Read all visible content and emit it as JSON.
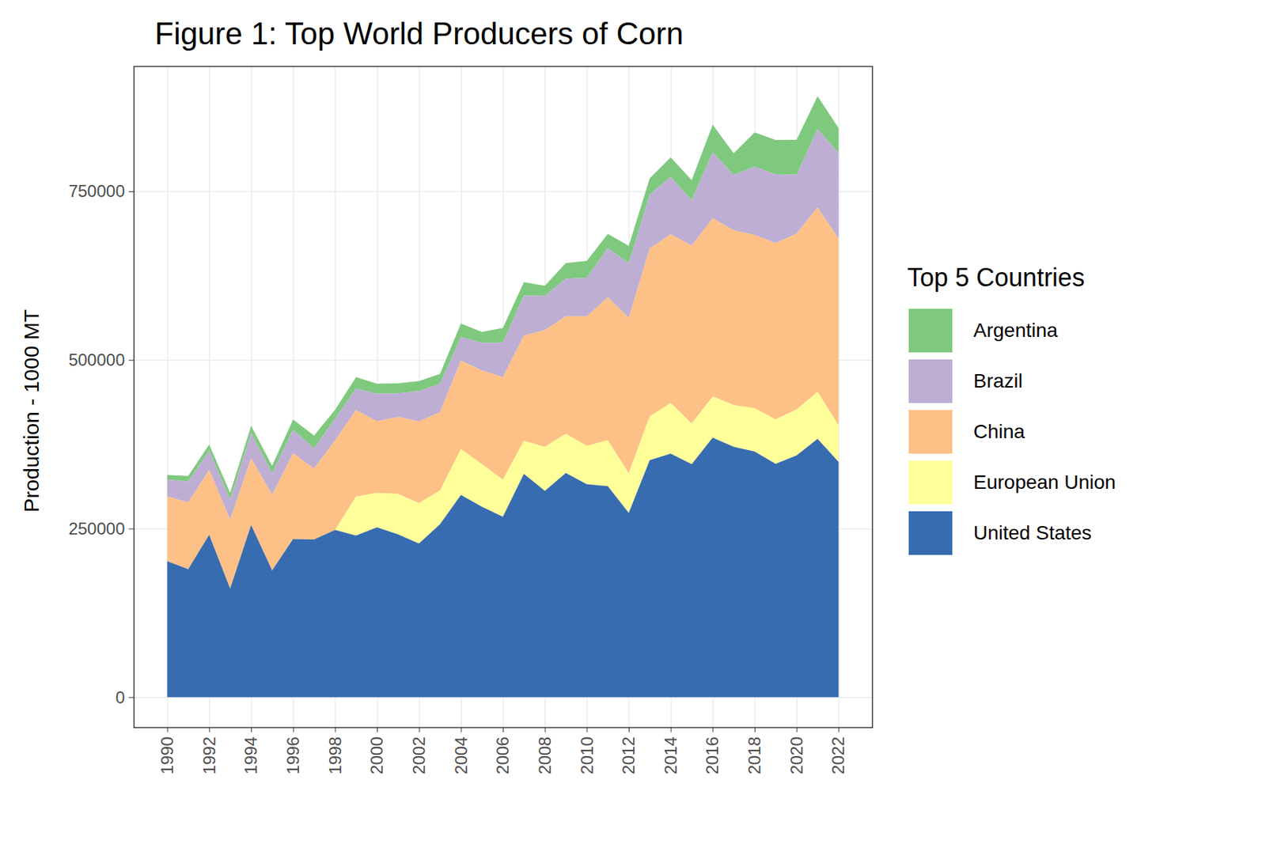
{
  "chart_data": {
    "type": "area",
    "title": "Figure 1: Top World Producers of Corn",
    "y_label": "Production - 1000 MT",
    "legend_title": "Top 5 Countries",
    "stacked": true,
    "grid": true,
    "legend": "right",
    "x": [
      1990,
      1991,
      1992,
      1993,
      1994,
      1995,
      1996,
      1997,
      1998,
      1999,
      2000,
      2001,
      2002,
      2003,
      2004,
      2005,
      2006,
      2007,
      2008,
      2009,
      2010,
      2011,
      2012,
      2013,
      2014,
      2015,
      2016,
      2017,
      2018,
      2019,
      2020,
      2021,
      2022
    ],
    "series": [
      {
        "name": "Argentina",
        "color": "#7fc97f",
        "values": [
          7000,
          8000,
          9000,
          10000,
          11000,
          11000,
          15000,
          19000,
          13000,
          17000,
          15000,
          15000,
          15000,
          15000,
          20000,
          16000,
          22000,
          20000,
          15000,
          23000,
          25000,
          21000,
          26000,
          24000,
          29000,
          30000,
          41000,
          32000,
          51000,
          51000,
          52000,
          49000,
          37000
        ]
      },
      {
        "name": "Brazil",
        "color": "#beaed4",
        "values": [
          25000,
          31000,
          29000,
          30000,
          37000,
          32000,
          35000,
          30000,
          32000,
          32000,
          41000,
          35000,
          45000,
          42000,
          35000,
          41000,
          51000,
          59000,
          51000,
          56000,
          57000,
          73000,
          81000,
          80000,
          85000,
          67000,
          98000,
          82000,
          101000,
          102000,
          87000,
          116000,
          127000
        ]
      },
      {
        "name": "China",
        "color": "#fdc086",
        "values": [
          96000,
          99000,
          96000,
          102000,
          99000,
          112000,
          127000,
          105000,
          133000,
          128000,
          106000,
          114000,
          121000,
          116000,
          131000,
          139000,
          152000,
          156000,
          173000,
          174000,
          192000,
          212000,
          230000,
          249000,
          250000,
          264000,
          264000,
          259000,
          257000,
          261000,
          261000,
          273000,
          277000
        ]
      },
      {
        "name": "European Union",
        "color": "#ffff99",
        "values": [
          null,
          null,
          null,
          null,
          null,
          null,
          null,
          null,
          null,
          58000,
          51000,
          60000,
          60000,
          50000,
          68000,
          63000,
          55000,
          49000,
          65000,
          58000,
          57000,
          68000,
          59000,
          65000,
          75000,
          60000,
          61000,
          62000,
          64000,
          66000,
          68000,
          70000,
          54000
        ]
      },
      {
        "name": "United States",
        "color": "#386cb0",
        "values": [
          201500,
          189900,
          240700,
          161000,
          255300,
          188000,
          234500,
          233900,
          247900,
          239500,
          251900,
          241400,
          227800,
          256200,
          299900,
          282300,
          267500,
          331200,
          305900,
          332500,
          315600,
          312800,
          273200,
          351300,
          361100,
          345500,
          384800,
          371100,
          364300,
          346000,
          358400,
          382900,
          348800
        ]
      }
    ],
    "xlim": [
      1988.4,
      2023.6
    ],
    "ylim": [
      -44500,
      935500
    ],
    "xticks": [
      1990,
      1992,
      1994,
      1996,
      1998,
      2000,
      2002,
      2004,
      2006,
      2008,
      2010,
      2012,
      2014,
      2016,
      2018,
      2020,
      2022
    ],
    "yticks": [
      0,
      250000,
      500000,
      750000
    ]
  }
}
